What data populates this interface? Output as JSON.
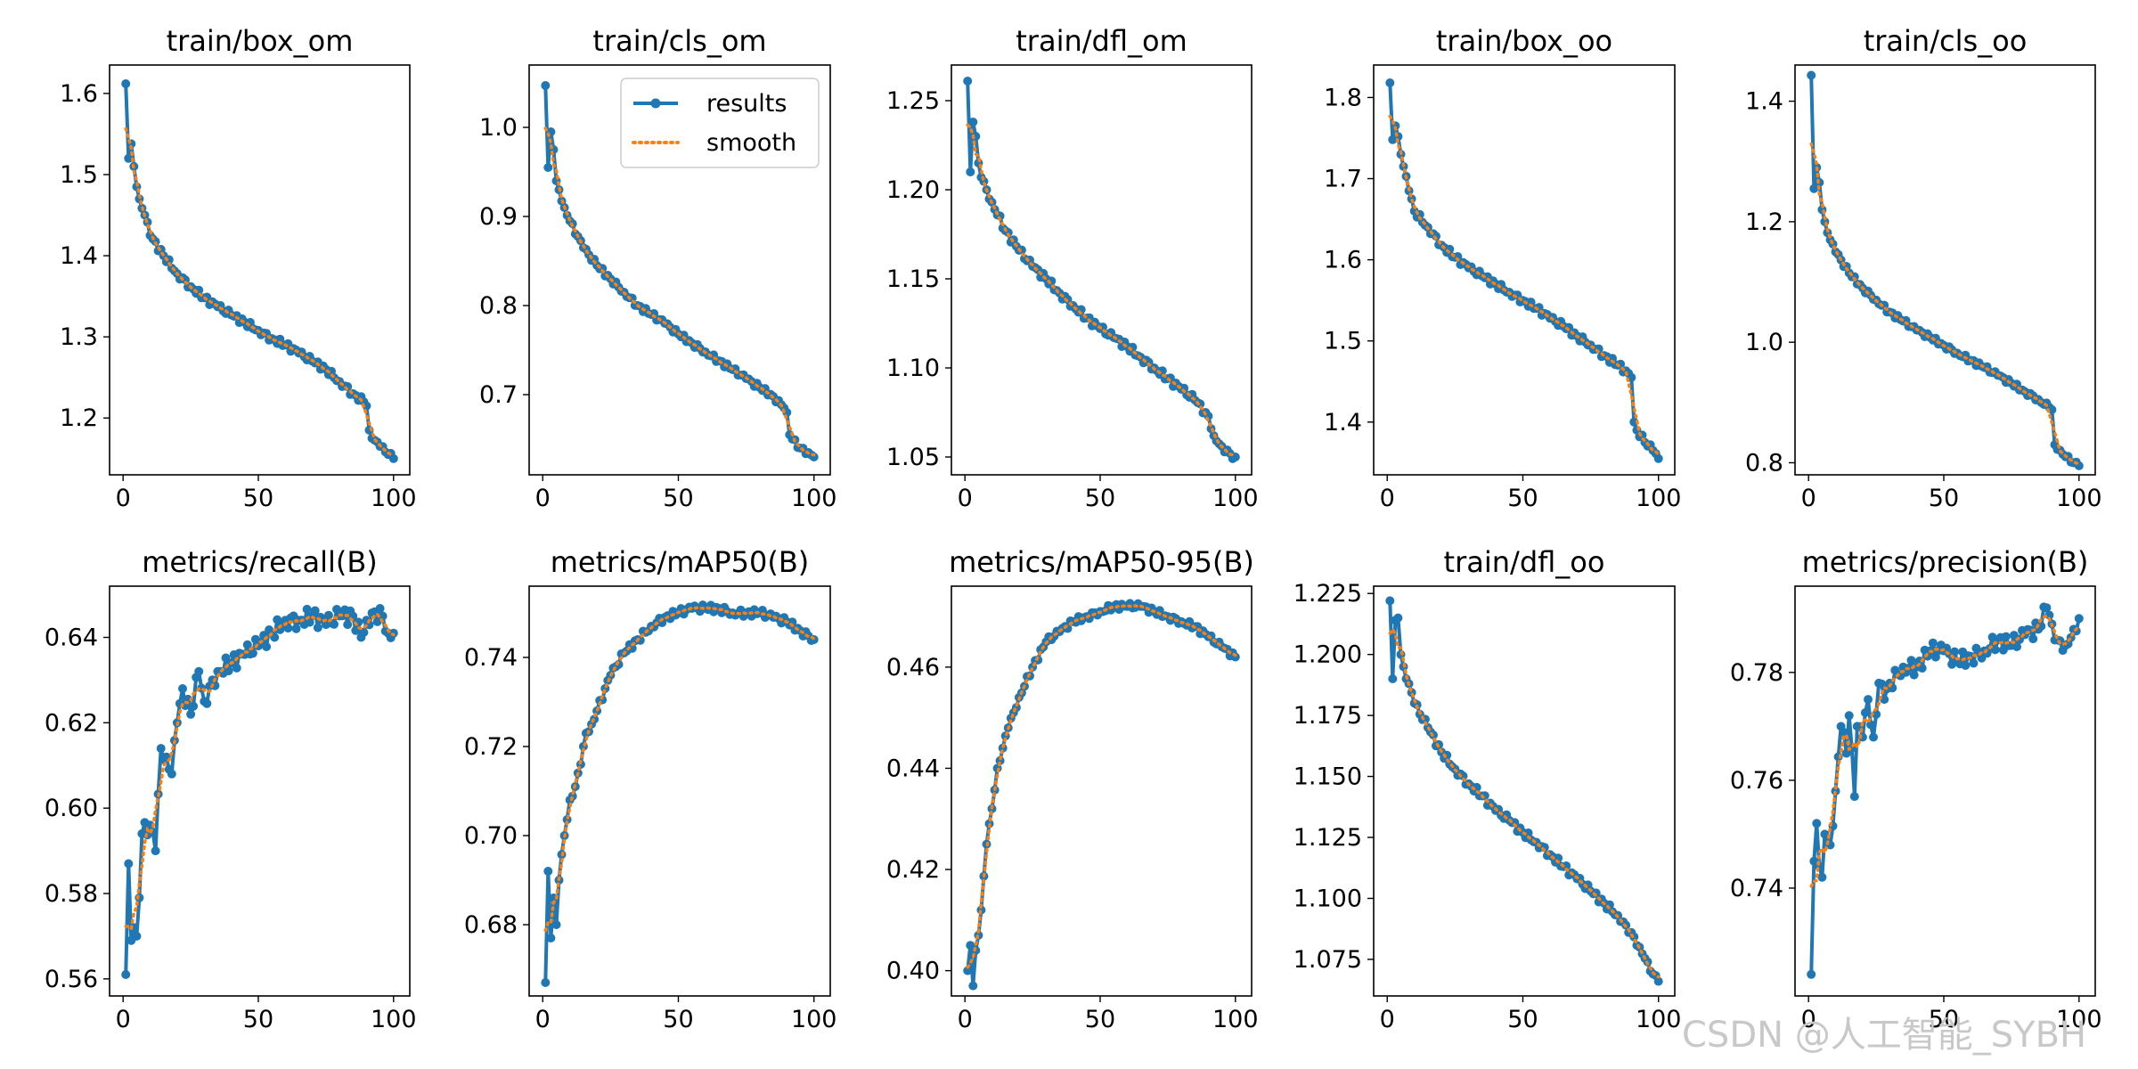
{
  "colors": {
    "results": "#1f77b4",
    "smooth": "#ff7f0e",
    "watermark": "#c8c8c8"
  },
  "legend": {
    "results_label": "results",
    "smooth_label": "smooth",
    "placement": "upper-right of panel 2"
  },
  "watermark": "CSDN @人工智能_SYBH",
  "chart_data": [
    {
      "type": "line",
      "title": "train/box_om",
      "xlim": [
        -5,
        106
      ],
      "ylim": [
        1.13,
        1.635
      ],
      "xticks": [
        0,
        50,
        100
      ],
      "yticks": [
        1.2,
        1.3,
        1.4,
        1.5,
        1.6
      ],
      "anchors": [
        [
          1,
          1.612
        ],
        [
          2,
          1.52
        ],
        [
          3,
          1.538
        ],
        [
          4,
          1.51
        ],
        [
          5,
          1.485
        ],
        [
          6,
          1.47
        ],
        [
          8,
          1.45
        ],
        [
          10,
          1.425
        ],
        [
          15,
          1.4
        ],
        [
          20,
          1.378
        ],
        [
          25,
          1.362
        ],
        [
          30,
          1.348
        ],
        [
          35,
          1.337
        ],
        [
          40,
          1.327
        ],
        [
          45,
          1.318
        ],
        [
          50,
          1.308
        ],
        [
          55,
          1.298
        ],
        [
          60,
          1.29
        ],
        [
          65,
          1.28
        ],
        [
          70,
          1.27
        ],
        [
          75,
          1.26
        ],
        [
          80,
          1.245
        ],
        [
          85,
          1.23
        ],
        [
          89,
          1.22
        ],
        [
          90,
          1.215
        ],
        [
          91,
          1.185
        ],
        [
          92,
          1.175
        ],
        [
          95,
          1.165
        ],
        [
          98,
          1.155
        ],
        [
          100,
          1.15
        ]
      ],
      "jitter": 0.004
    },
    {
      "type": "line",
      "title": "train/cls_om",
      "xlim": [
        -5,
        106
      ],
      "ylim": [
        0.61,
        1.07
      ],
      "xticks": [
        0,
        50,
        100
      ],
      "yticks": [
        0.7,
        0.8,
        0.9,
        1.0
      ],
      "anchors": [
        [
          1,
          1.047
        ],
        [
          2,
          0.955
        ],
        [
          3,
          0.995
        ],
        [
          4,
          0.975
        ],
        [
          5,
          0.94
        ],
        [
          6,
          0.93
        ],
        [
          8,
          0.91
        ],
        [
          10,
          0.895
        ],
        [
          15,
          0.865
        ],
        [
          20,
          0.845
        ],
        [
          25,
          0.83
        ],
        [
          30,
          0.815
        ],
        [
          35,
          0.8
        ],
        [
          40,
          0.79
        ],
        [
          45,
          0.78
        ],
        [
          50,
          0.768
        ],
        [
          55,
          0.758
        ],
        [
          60,
          0.748
        ],
        [
          65,
          0.738
        ],
        [
          70,
          0.728
        ],
        [
          75,
          0.718
        ],
        [
          80,
          0.708
        ],
        [
          85,
          0.698
        ],
        [
          89,
          0.685
        ],
        [
          90,
          0.68
        ],
        [
          91,
          0.655
        ],
        [
          92,
          0.65
        ],
        [
          95,
          0.64
        ],
        [
          98,
          0.635
        ],
        [
          100,
          0.63
        ]
      ],
      "jitter": 0.003
    },
    {
      "type": "line",
      "title": "train/dfl_om",
      "xlim": [
        -5,
        106
      ],
      "ylim": [
        1.04,
        1.27
      ],
      "xticks": [
        0,
        50,
        100
      ],
      "yticks": [
        1.05,
        1.1,
        1.15,
        1.2,
        1.25
      ],
      "anchors": [
        [
          1,
          1.261
        ],
        [
          2,
          1.21
        ],
        [
          3,
          1.238
        ],
        [
          4,
          1.23
        ],
        [
          5,
          1.215
        ],
        [
          6,
          1.207
        ],
        [
          8,
          1.2
        ],
        [
          10,
          1.193
        ],
        [
          15,
          1.177
        ],
        [
          20,
          1.166
        ],
        [
          25,
          1.157
        ],
        [
          30,
          1.15
        ],
        [
          35,
          1.142
        ],
        [
          40,
          1.135
        ],
        [
          45,
          1.128
        ],
        [
          50,
          1.122
        ],
        [
          55,
          1.117
        ],
        [
          60,
          1.112
        ],
        [
          65,
          1.106
        ],
        [
          70,
          1.1
        ],
        [
          75,
          1.094
        ],
        [
          80,
          1.088
        ],
        [
          85,
          1.082
        ],
        [
          89,
          1.075
        ],
        [
          90,
          1.073
        ],
        [
          92,
          1.062
        ],
        [
          95,
          1.056
        ],
        [
          98,
          1.052
        ],
        [
          100,
          1.05
        ]
      ],
      "jitter": 0.002
    },
    {
      "type": "line",
      "title": "train/box_oo",
      "xlim": [
        -5,
        106
      ],
      "ylim": [
        1.335,
        1.84
      ],
      "xticks": [
        0,
        50,
        100
      ],
      "yticks": [
        1.4,
        1.5,
        1.6,
        1.7,
        1.8
      ],
      "anchors": [
        [
          1,
          1.818
        ],
        [
          2,
          1.748
        ],
        [
          3,
          1.765
        ],
        [
          4,
          1.752
        ],
        [
          5,
          1.73
        ],
        [
          6,
          1.715
        ],
        [
          8,
          1.685
        ],
        [
          10,
          1.66
        ],
        [
          15,
          1.64
        ],
        [
          20,
          1.618
        ],
        [
          25,
          1.603
        ],
        [
          30,
          1.59
        ],
        [
          35,
          1.58
        ],
        [
          40,
          1.57
        ],
        [
          45,
          1.56
        ],
        [
          50,
          1.55
        ],
        [
          55,
          1.54
        ],
        [
          60,
          1.528
        ],
        [
          65,
          1.518
        ],
        [
          70,
          1.506
        ],
        [
          75,
          1.495
        ],
        [
          80,
          1.482
        ],
        [
          85,
          1.47
        ],
        [
          89,
          1.46
        ],
        [
          90,
          1.455
        ],
        [
          91,
          1.4
        ],
        [
          92,
          1.39
        ],
        [
          95,
          1.375
        ],
        [
          98,
          1.365
        ],
        [
          100,
          1.355
        ]
      ],
      "jitter": 0.004
    },
    {
      "type": "line",
      "title": "train/cls_oo",
      "xlim": [
        -5,
        106
      ],
      "ylim": [
        0.78,
        1.46
      ],
      "xticks": [
        0,
        50,
        100
      ],
      "yticks": [
        0.8,
        1.0,
        1.2,
        1.4
      ],
      "anchors": [
        [
          1,
          1.443
        ],
        [
          2,
          1.255
        ],
        [
          3,
          1.29
        ],
        [
          4,
          1.265
        ],
        [
          5,
          1.22
        ],
        [
          6,
          1.2
        ],
        [
          8,
          1.17
        ],
        [
          10,
          1.15
        ],
        [
          15,
          1.115
        ],
        [
          20,
          1.09
        ],
        [
          25,
          1.07
        ],
        [
          30,
          1.05
        ],
        [
          35,
          1.035
        ],
        [
          40,
          1.02
        ],
        [
          45,
          1.008
        ],
        [
          50,
          0.995
        ],
        [
          55,
          0.982
        ],
        [
          60,
          0.97
        ],
        [
          65,
          0.958
        ],
        [
          70,
          0.945
        ],
        [
          75,
          0.932
        ],
        [
          80,
          0.918
        ],
        [
          85,
          0.905
        ],
        [
          89,
          0.892
        ],
        [
          90,
          0.888
        ],
        [
          91,
          0.83
        ],
        [
          92,
          0.822
        ],
        [
          95,
          0.81
        ],
        [
          98,
          0.8
        ],
        [
          100,
          0.795
        ]
      ],
      "jitter": 0.004
    },
    {
      "type": "line",
      "title": "metrics/recall(B)",
      "xlim": [
        -5,
        106
      ],
      "ylim": [
        0.556,
        0.652
      ],
      "xticks": [
        0,
        50,
        100
      ],
      "yticks": [
        0.56,
        0.58,
        0.6,
        0.62,
        0.64
      ],
      "anchors": [
        [
          1,
          0.561
        ],
        [
          2,
          0.587
        ],
        [
          3,
          0.569
        ],
        [
          4,
          0.572
        ],
        [
          5,
          0.57
        ],
        [
          6,
          0.579
        ],
        [
          7,
          0.594
        ],
        [
          10,
          0.596
        ],
        [
          12,
          0.59
        ],
        [
          14,
          0.614
        ],
        [
          16,
          0.612
        ],
        [
          18,
          0.608
        ],
        [
          20,
          0.62
        ],
        [
          22,
          0.628
        ],
        [
          25,
          0.622
        ],
        [
          28,
          0.632
        ],
        [
          30,
          0.625
        ],
        [
          35,
          0.632
        ],
        [
          40,
          0.634
        ],
        [
          45,
          0.636
        ],
        [
          50,
          0.638
        ],
        [
          55,
          0.641
        ],
        [
          60,
          0.644
        ],
        [
          65,
          0.644
        ],
        [
          70,
          0.645
        ],
        [
          75,
          0.643
        ],
        [
          80,
          0.645
        ],
        [
          85,
          0.645
        ],
        [
          88,
          0.64
        ],
        [
          90,
          0.644
        ],
        [
          93,
          0.646
        ],
        [
          96,
          0.645
        ],
        [
          98,
          0.641
        ],
        [
          100,
          0.641
        ]
      ],
      "jitter": 0.002
    },
    {
      "type": "line",
      "title": "metrics/mAP50(B)",
      "xlim": [
        -5,
        106
      ],
      "ylim": [
        0.664,
        0.756
      ],
      "xticks": [
        0,
        50,
        100
      ],
      "yticks": [
        0.68,
        0.7,
        0.72,
        0.74
      ],
      "anchors": [
        [
          1,
          0.667
        ],
        [
          2,
          0.692
        ],
        [
          3,
          0.677
        ],
        [
          4,
          0.686
        ],
        [
          5,
          0.68
        ],
        [
          6,
          0.69
        ],
        [
          8,
          0.7
        ],
        [
          10,
          0.708
        ],
        [
          12,
          0.711
        ],
        [
          14,
          0.716
        ],
        [
          16,
          0.723
        ],
        [
          18,
          0.725
        ],
        [
          20,
          0.728
        ],
        [
          25,
          0.736
        ],
        [
          30,
          0.741
        ],
        [
          35,
          0.744
        ],
        [
          40,
          0.747
        ],
        [
          45,
          0.749
        ],
        [
          50,
          0.75
        ],
        [
          55,
          0.751
        ],
        [
          60,
          0.751
        ],
        [
          65,
          0.751
        ],
        [
          70,
          0.75
        ],
        [
          75,
          0.75
        ],
        [
          80,
          0.75
        ],
        [
          85,
          0.749
        ],
        [
          90,
          0.748
        ],
        [
          95,
          0.746
        ],
        [
          100,
          0.744
        ]
      ],
      "jitter": 0.0008
    },
    {
      "type": "line",
      "title": "metrics/mAP50-95(B)",
      "xlim": [
        -5,
        106
      ],
      "ylim": [
        0.395,
        0.476
      ],
      "xticks": [
        0,
        50,
        100
      ],
      "yticks": [
        0.4,
        0.42,
        0.44,
        0.46
      ],
      "anchors": [
        [
          1,
          0.4
        ],
        [
          2,
          0.405
        ],
        [
          3,
          0.397
        ],
        [
          4,
          0.404
        ],
        [
          5,
          0.407
        ],
        [
          6,
          0.412
        ],
        [
          8,
          0.425
        ],
        [
          10,
          0.432
        ],
        [
          12,
          0.44
        ],
        [
          14,
          0.444
        ],
        [
          16,
          0.448
        ],
        [
          18,
          0.451
        ],
        [
          20,
          0.454
        ],
        [
          25,
          0.46
        ],
        [
          30,
          0.465
        ],
        [
          35,
          0.467
        ],
        [
          40,
          0.469
        ],
        [
          45,
          0.47
        ],
        [
          50,
          0.471
        ],
        [
          55,
          0.472
        ],
        [
          60,
          0.472
        ],
        [
          65,
          0.472
        ],
        [
          70,
          0.471
        ],
        [
          75,
          0.47
        ],
        [
          80,
          0.469
        ],
        [
          85,
          0.468
        ],
        [
          90,
          0.466
        ],
        [
          95,
          0.464
        ],
        [
          100,
          0.462
        ]
      ],
      "jitter": 0.0006
    },
    {
      "type": "line",
      "title": "train/dfl_oo",
      "xlim": [
        -5,
        106
      ],
      "ylim": [
        1.06,
        1.228
      ],
      "xticks": [
        0,
        50,
        100
      ],
      "yticks": [
        1.075,
        1.1,
        1.125,
        1.15,
        1.175,
        1.2,
        1.225
      ],
      "anchors": [
        [
          1,
          1.222
        ],
        [
          2,
          1.19
        ],
        [
          3,
          1.214
        ],
        [
          4,
          1.215
        ],
        [
          5,
          1.2
        ],
        [
          6,
          1.195
        ],
        [
          8,
          1.188
        ],
        [
          10,
          1.18
        ],
        [
          15,
          1.17
        ],
        [
          20,
          1.16
        ],
        [
          25,
          1.153
        ],
        [
          30,
          1.147
        ],
        [
          35,
          1.142
        ],
        [
          40,
          1.136
        ],
        [
          45,
          1.132
        ],
        [
          50,
          1.127
        ],
        [
          55,
          1.123
        ],
        [
          60,
          1.118
        ],
        [
          65,
          1.113
        ],
        [
          70,
          1.108
        ],
        [
          75,
          1.103
        ],
        [
          80,
          1.098
        ],
        [
          85,
          1.093
        ],
        [
          88,
          1.089
        ],
        [
          90,
          1.086
        ],
        [
          93,
          1.08
        ],
        [
          96,
          1.074
        ],
        [
          98,
          1.069
        ],
        [
          100,
          1.066
        ]
      ],
      "jitter": 0.0015
    },
    {
      "type": "line",
      "title": "metrics/precision(B)",
      "xlim": [
        -5,
        106
      ],
      "ylim": [
        0.72,
        0.796
      ],
      "xticks": [
        0,
        50,
        100
      ],
      "yticks": [
        0.74,
        0.76,
        0.78
      ],
      "anchors": [
        [
          1,
          0.724
        ],
        [
          2,
          0.745
        ],
        [
          3,
          0.752
        ],
        [
          4,
          0.744
        ],
        [
          5,
          0.742
        ],
        [
          6,
          0.75
        ],
        [
          8,
          0.748
        ],
        [
          10,
          0.758
        ],
        [
          12,
          0.77
        ],
        [
          14,
          0.765
        ],
        [
          15,
          0.772
        ],
        [
          17,
          0.757
        ],
        [
          18,
          0.77
        ],
        [
          20,
          0.768
        ],
        [
          22,
          0.775
        ],
        [
          24,
          0.768
        ],
        [
          26,
          0.778
        ],
        [
          28,
          0.775
        ],
        [
          30,
          0.778
        ],
        [
          35,
          0.781
        ],
        [
          40,
          0.781
        ],
        [
          45,
          0.784
        ],
        [
          50,
          0.784
        ],
        [
          55,
          0.782
        ],
        [
          60,
          0.783
        ],
        [
          65,
          0.784
        ],
        [
          70,
          0.786
        ],
        [
          75,
          0.785
        ],
        [
          80,
          0.787
        ],
        [
          85,
          0.788
        ],
        [
          88,
          0.792
        ],
        [
          90,
          0.789
        ],
        [
          92,
          0.786
        ],
        [
          95,
          0.785
        ],
        [
          98,
          0.788
        ],
        [
          100,
          0.79
        ]
      ],
      "jitter": 0.0015
    }
  ]
}
